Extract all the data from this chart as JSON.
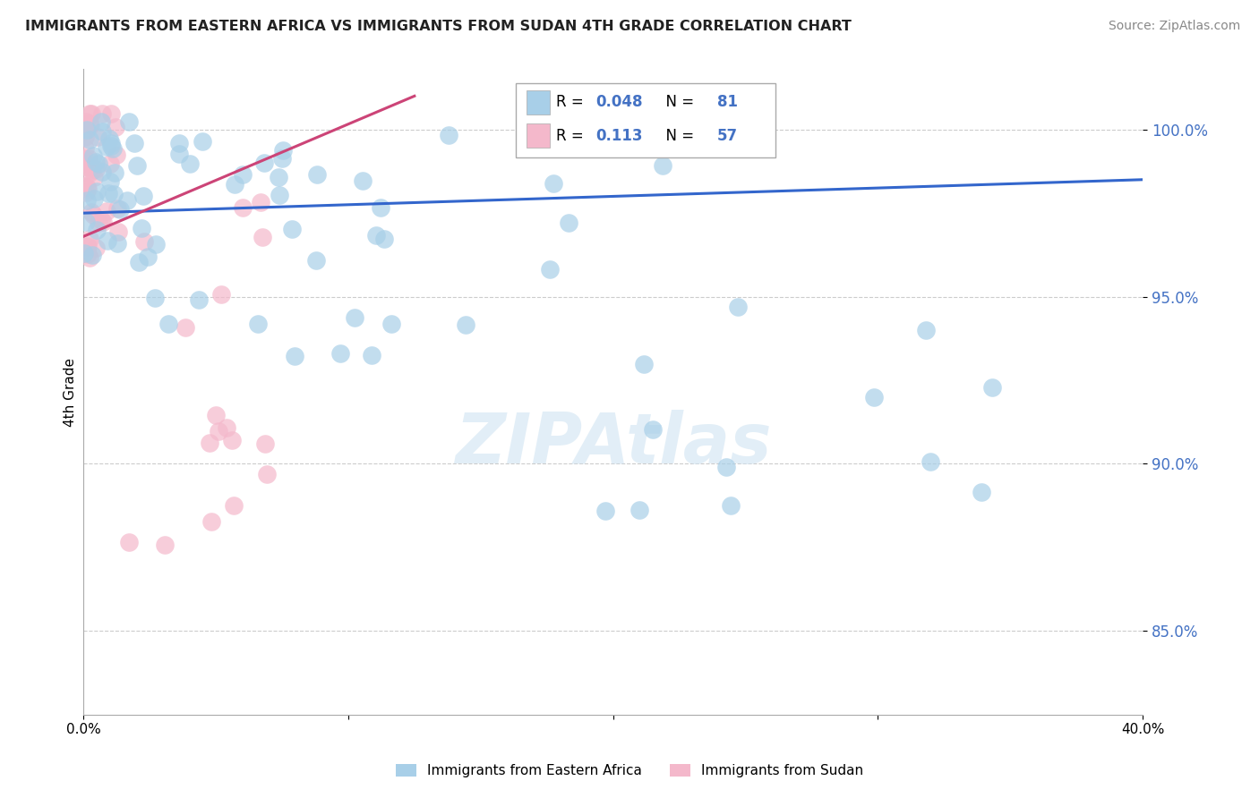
{
  "title": "IMMIGRANTS FROM EASTERN AFRICA VS IMMIGRANTS FROM SUDAN 4TH GRADE CORRELATION CHART",
  "source": "Source: ZipAtlas.com",
  "ylabel": "4th Grade",
  "xmin": 0.0,
  "xmax": 40.0,
  "ymin": 82.5,
  "ymax": 101.8,
  "blue_R": 0.048,
  "blue_N": 81,
  "pink_R": 0.113,
  "pink_N": 57,
  "blue_color": "#a8cfe8",
  "pink_color": "#f4b8cb",
  "blue_line_color": "#3366cc",
  "pink_line_color": "#cc4477",
  "watermark": "ZIPAtlas",
  "ytick_vals": [
    85.0,
    90.0,
    95.0,
    100.0
  ],
  "blue_line_x0": 0.0,
  "blue_line_x1": 40.0,
  "blue_line_y0": 97.5,
  "blue_line_y1": 98.5,
  "pink_line_x0": 0.0,
  "pink_line_x1": 12.5,
  "pink_line_y0": 96.8,
  "pink_line_y1": 101.0
}
